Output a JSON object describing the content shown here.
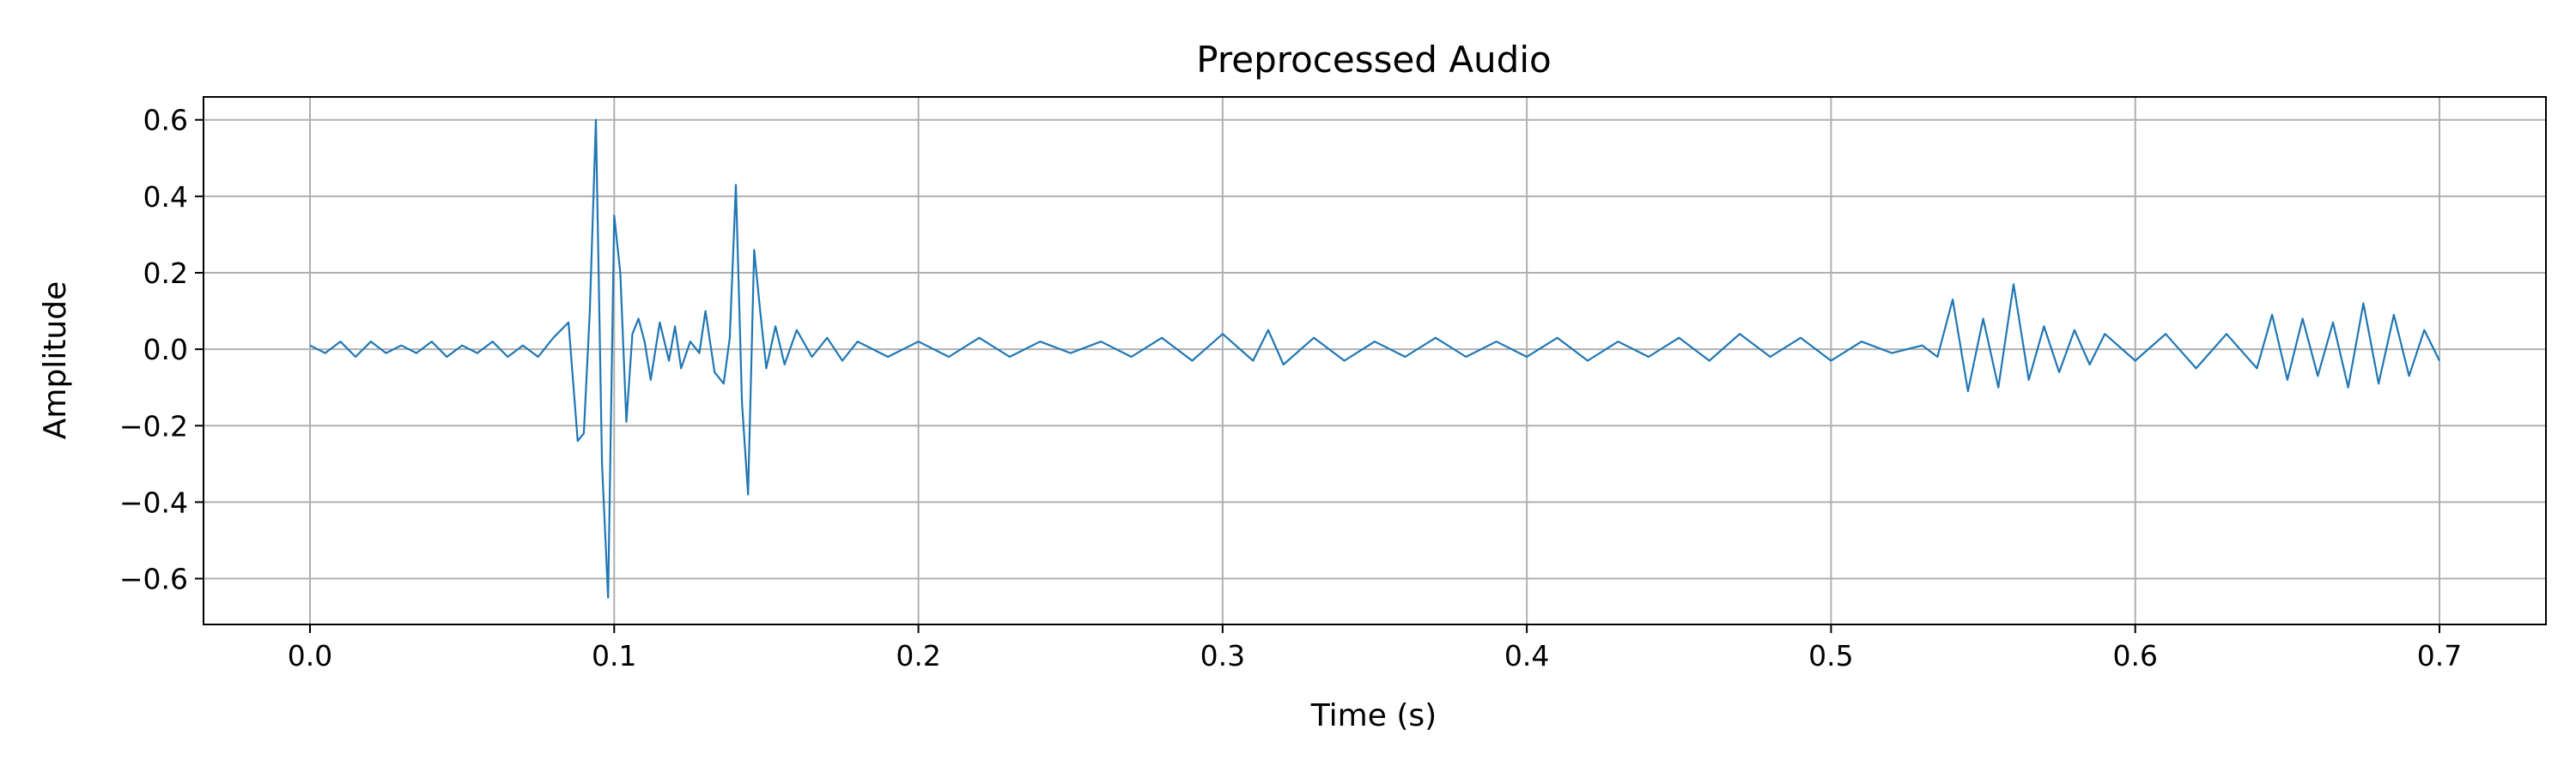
{
  "chart_data": {
    "type": "line",
    "title": "Preprocessed Audio",
    "xlabel": "Time (s)",
    "ylabel": "Amplitude",
    "xlim": [
      -0.035,
      0.735
    ],
    "ylim": [
      -0.72,
      0.66
    ],
    "grid": true,
    "x_ticks": [
      {
        "value": 0.0,
        "label": "0.0"
      },
      {
        "value": 0.1,
        "label": "0.1"
      },
      {
        "value": 0.2,
        "label": "0.2"
      },
      {
        "value": 0.3,
        "label": "0.3"
      },
      {
        "value": 0.4,
        "label": "0.4"
      },
      {
        "value": 0.5,
        "label": "0.5"
      },
      {
        "value": 0.6,
        "label": "0.6"
      },
      {
        "value": 0.7,
        "label": "0.7"
      }
    ],
    "y_ticks": [
      {
        "value": 0.6,
        "label": "0.6"
      },
      {
        "value": 0.4,
        "label": "0.4"
      },
      {
        "value": 0.2,
        "label": "0.2"
      },
      {
        "value": 0.0,
        "label": "0.0"
      },
      {
        "value": -0.2,
        "label": "−0.2"
      },
      {
        "value": -0.4,
        "label": "−0.4"
      },
      {
        "value": -0.6,
        "label": "−0.6"
      }
    ],
    "series": [
      {
        "color": "#1f77b4",
        "x": [
          0.0,
          0.005,
          0.01,
          0.015,
          0.02,
          0.025,
          0.03,
          0.035,
          0.04,
          0.045,
          0.05,
          0.055,
          0.06,
          0.065,
          0.07,
          0.075,
          0.08,
          0.085,
          0.088,
          0.09,
          0.092,
          0.094,
          0.096,
          0.098,
          0.1,
          0.102,
          0.104,
          0.106,
          0.108,
          0.11,
          0.112,
          0.115,
          0.118,
          0.12,
          0.122,
          0.125,
          0.128,
          0.13,
          0.133,
          0.136,
          0.138,
          0.14,
          0.142,
          0.144,
          0.146,
          0.148,
          0.15,
          0.153,
          0.156,
          0.16,
          0.165,
          0.17,
          0.175,
          0.18,
          0.19,
          0.2,
          0.21,
          0.22,
          0.23,
          0.24,
          0.25,
          0.26,
          0.27,
          0.28,
          0.29,
          0.3,
          0.31,
          0.315,
          0.32,
          0.33,
          0.34,
          0.35,
          0.36,
          0.37,
          0.38,
          0.39,
          0.4,
          0.41,
          0.42,
          0.43,
          0.44,
          0.45,
          0.46,
          0.47,
          0.48,
          0.49,
          0.5,
          0.51,
          0.52,
          0.53,
          0.535,
          0.54,
          0.545,
          0.55,
          0.555,
          0.56,
          0.565,
          0.57,
          0.575,
          0.58,
          0.585,
          0.59,
          0.6,
          0.61,
          0.62,
          0.63,
          0.64,
          0.645,
          0.65,
          0.655,
          0.66,
          0.665,
          0.67,
          0.675,
          0.68,
          0.685,
          0.69,
          0.695,
          0.7
        ],
        "y": [
          0.01,
          -0.01,
          0.02,
          -0.02,
          0.02,
          -0.01,
          0.01,
          -0.01,
          0.02,
          -0.02,
          0.01,
          -0.01,
          0.02,
          -0.02,
          0.01,
          -0.02,
          0.03,
          0.07,
          -0.24,
          -0.22,
          0.1,
          0.6,
          -0.3,
          -0.65,
          0.35,
          0.2,
          -0.19,
          0.04,
          0.08,
          0.02,
          -0.08,
          0.07,
          -0.03,
          0.06,
          -0.05,
          0.02,
          -0.01,
          0.1,
          -0.06,
          -0.09,
          0.03,
          0.43,
          -0.14,
          -0.38,
          0.26,
          0.1,
          -0.05,
          0.06,
          -0.04,
          0.05,
          -0.02,
          0.03,
          -0.03,
          0.02,
          -0.02,
          0.02,
          -0.02,
          0.03,
          -0.02,
          0.02,
          -0.01,
          0.02,
          -0.02,
          0.03,
          -0.03,
          0.04,
          -0.03,
          0.05,
          -0.04,
          0.03,
          -0.03,
          0.02,
          -0.02,
          0.03,
          -0.02,
          0.02,
          -0.02,
          0.03,
          -0.03,
          0.02,
          -0.02,
          0.03,
          -0.03,
          0.04,
          -0.02,
          0.03,
          -0.03,
          0.02,
          -0.01,
          0.01,
          -0.02,
          0.13,
          -0.11,
          0.08,
          -0.1,
          0.17,
          -0.08,
          0.06,
          -0.06,
          0.05,
          -0.04,
          0.04,
          -0.03,
          0.04,
          -0.05,
          0.04,
          -0.05,
          0.09,
          -0.08,
          0.08,
          -0.07,
          0.07,
          -0.1,
          0.12,
          -0.09,
          0.09,
          -0.07,
          0.05,
          -0.03
        ]
      }
    ]
  }
}
